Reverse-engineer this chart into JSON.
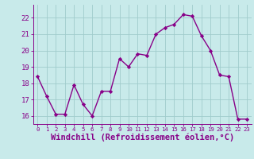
{
  "x": [
    0,
    1,
    2,
    3,
    4,
    5,
    6,
    7,
    8,
    9,
    10,
    11,
    12,
    13,
    14,
    15,
    16,
    17,
    18,
    19,
    20,
    21,
    22,
    23
  ],
  "y": [
    18.4,
    17.2,
    16.1,
    16.1,
    17.9,
    16.7,
    16.0,
    17.5,
    17.5,
    19.5,
    19.0,
    19.8,
    19.7,
    21.0,
    21.4,
    21.6,
    22.2,
    22.1,
    20.9,
    20.0,
    18.5,
    18.4,
    15.8,
    15.8
  ],
  "line_color": "#880088",
  "marker": "D",
  "marker_size": 2.2,
  "line_width": 1.0,
  "xlabel": "Windchill (Refroidissement éolien,°C)",
  "xlabel_fontsize": 7.5,
  "ylim": [
    15.5,
    22.8
  ],
  "yticks": [
    16,
    17,
    18,
    19,
    20,
    21,
    22
  ],
  "xticks": [
    0,
    1,
    2,
    3,
    4,
    5,
    6,
    7,
    8,
    9,
    10,
    11,
    12,
    13,
    14,
    15,
    16,
    17,
    18,
    19,
    20,
    21,
    22,
    23
  ],
  "xtick_labels": [
    "0",
    "1",
    "2",
    "3",
    "4",
    "5",
    "6",
    "7",
    "8",
    "9",
    "10",
    "11",
    "12",
    "13",
    "14",
    "15",
    "16",
    "17",
    "18",
    "19",
    "20",
    "21",
    "22",
    "23"
  ],
  "bg_color": "#c8eaea",
  "grid_color": "#a0cccc",
  "axis_color": "#880088",
  "tick_color": "#880088",
  "label_color": "#880088",
  "ytick_fontsize": 6.5,
  "xtick_fontsize": 5.2
}
